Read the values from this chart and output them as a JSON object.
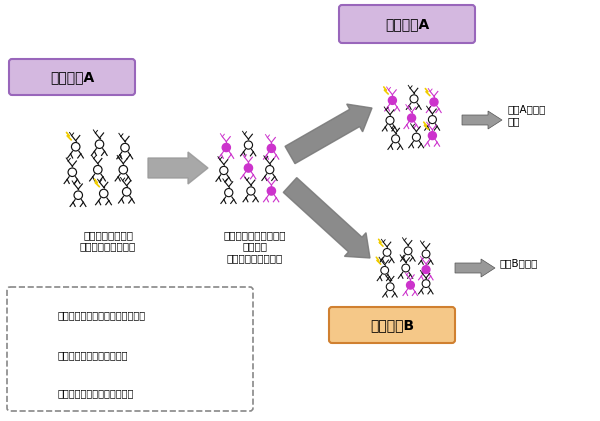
{
  "title_A_text": "学習訓練A",
  "title_B_text": "学習訓練B",
  "top_label_A_box_color": "#d4b8e0",
  "top_label_A_edge_color": "#9966bb",
  "left_label_A_box_color": "#d4b8e0",
  "bot_label_B_box_color": "#f5c888",
  "bot_label_B_edge_color": "#d08030",
  "label1_text": "一部の細胞群への\n記憶情報の割り当て",
  "label2_text": "記憶が割り当てられた\n細胞群に\nテタヌス毒素が発現",
  "label3_text": "記憶Aの想起\n障害",
  "label4_text": "記憶Bの想起",
  "legend_items": [
    "活動が遮断されていない神経細胞",
    "活動が遮断された神経細胞",
    "学習訓練時に働いた神経細胞"
  ],
  "neuron_black": "#111111",
  "neuron_purple": "#cc33cc",
  "neuron_body_white": "#ffffff",
  "lightning_color": "#f0cc00",
  "arrow_gray": "#888888"
}
